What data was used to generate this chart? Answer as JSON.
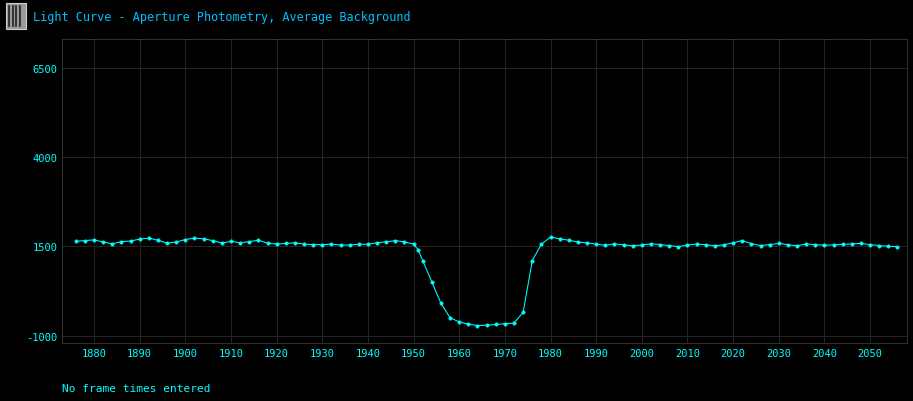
{
  "title": "Light Curve - Aperture Photometry, Average Background",
  "subtitle": "No frame times entered",
  "bg_color": "#000000",
  "title_bar_color": "#111111",
  "line_color": "#00FFFF",
  "marker_color": "#00FFFF",
  "title_color": "#00BFFF",
  "axis_label_color": "#00FFFF",
  "grid_color": "#2a2a2a",
  "xlim": [
    1873,
    2058
  ],
  "ylim": [
    -1200,
    7300
  ],
  "ytick_positions": [
    -1000,
    1500,
    4000,
    6500
  ],
  "ytick_labels": [
    "-1000",
    "1500",
    "4000",
    "6500"
  ],
  "xtick_positions": [
    1880,
    1890,
    1900,
    1910,
    1920,
    1930,
    1940,
    1950,
    1960,
    1970,
    1980,
    1990,
    2000,
    2010,
    2020,
    2030,
    2040,
    2050
  ],
  "x": [
    1876,
    1878,
    1880,
    1882,
    1884,
    1886,
    1888,
    1890,
    1892,
    1894,
    1896,
    1898,
    1900,
    1902,
    1904,
    1906,
    1908,
    1910,
    1912,
    1914,
    1916,
    1918,
    1920,
    1922,
    1924,
    1926,
    1928,
    1930,
    1932,
    1934,
    1936,
    1938,
    1940,
    1942,
    1944,
    1946,
    1948,
    1950,
    1951,
    1952,
    1954,
    1956,
    1958,
    1960,
    1962,
    1964,
    1966,
    1968,
    1970,
    1972,
    1974,
    1976,
    1978,
    1980,
    1982,
    1984,
    1986,
    1988,
    1990,
    1992,
    1994,
    1996,
    1998,
    2000,
    2002,
    2004,
    2006,
    2008,
    2010,
    2012,
    2014,
    2016,
    2018,
    2020,
    2022,
    2024,
    2026,
    2028,
    2030,
    2032,
    2034,
    2036,
    2038,
    2040,
    2042,
    2044,
    2046,
    2048,
    2050,
    2052,
    2054,
    2056
  ],
  "y": [
    1640,
    1660,
    1680,
    1620,
    1570,
    1630,
    1650,
    1700,
    1730,
    1670,
    1590,
    1620,
    1690,
    1730,
    1710,
    1660,
    1590,
    1640,
    1600,
    1630,
    1670,
    1590,
    1560,
    1580,
    1600,
    1560,
    1550,
    1545,
    1560,
    1535,
    1535,
    1560,
    1555,
    1600,
    1625,
    1660,
    1625,
    1560,
    1400,
    1100,
    500,
    -100,
    -500,
    -620,
    -680,
    -720,
    -710,
    -690,
    -670,
    -650,
    -350,
    1100,
    1560,
    1760,
    1710,
    1670,
    1620,
    1595,
    1560,
    1530,
    1565,
    1545,
    1510,
    1540,
    1570,
    1550,
    1520,
    1490,
    1540,
    1560,
    1545,
    1515,
    1540,
    1600,
    1660,
    1575,
    1520,
    1550,
    1580,
    1545,
    1515,
    1565,
    1548,
    1530,
    1540,
    1555,
    1568,
    1580,
    1548,
    1520,
    1500,
    1490
  ]
}
